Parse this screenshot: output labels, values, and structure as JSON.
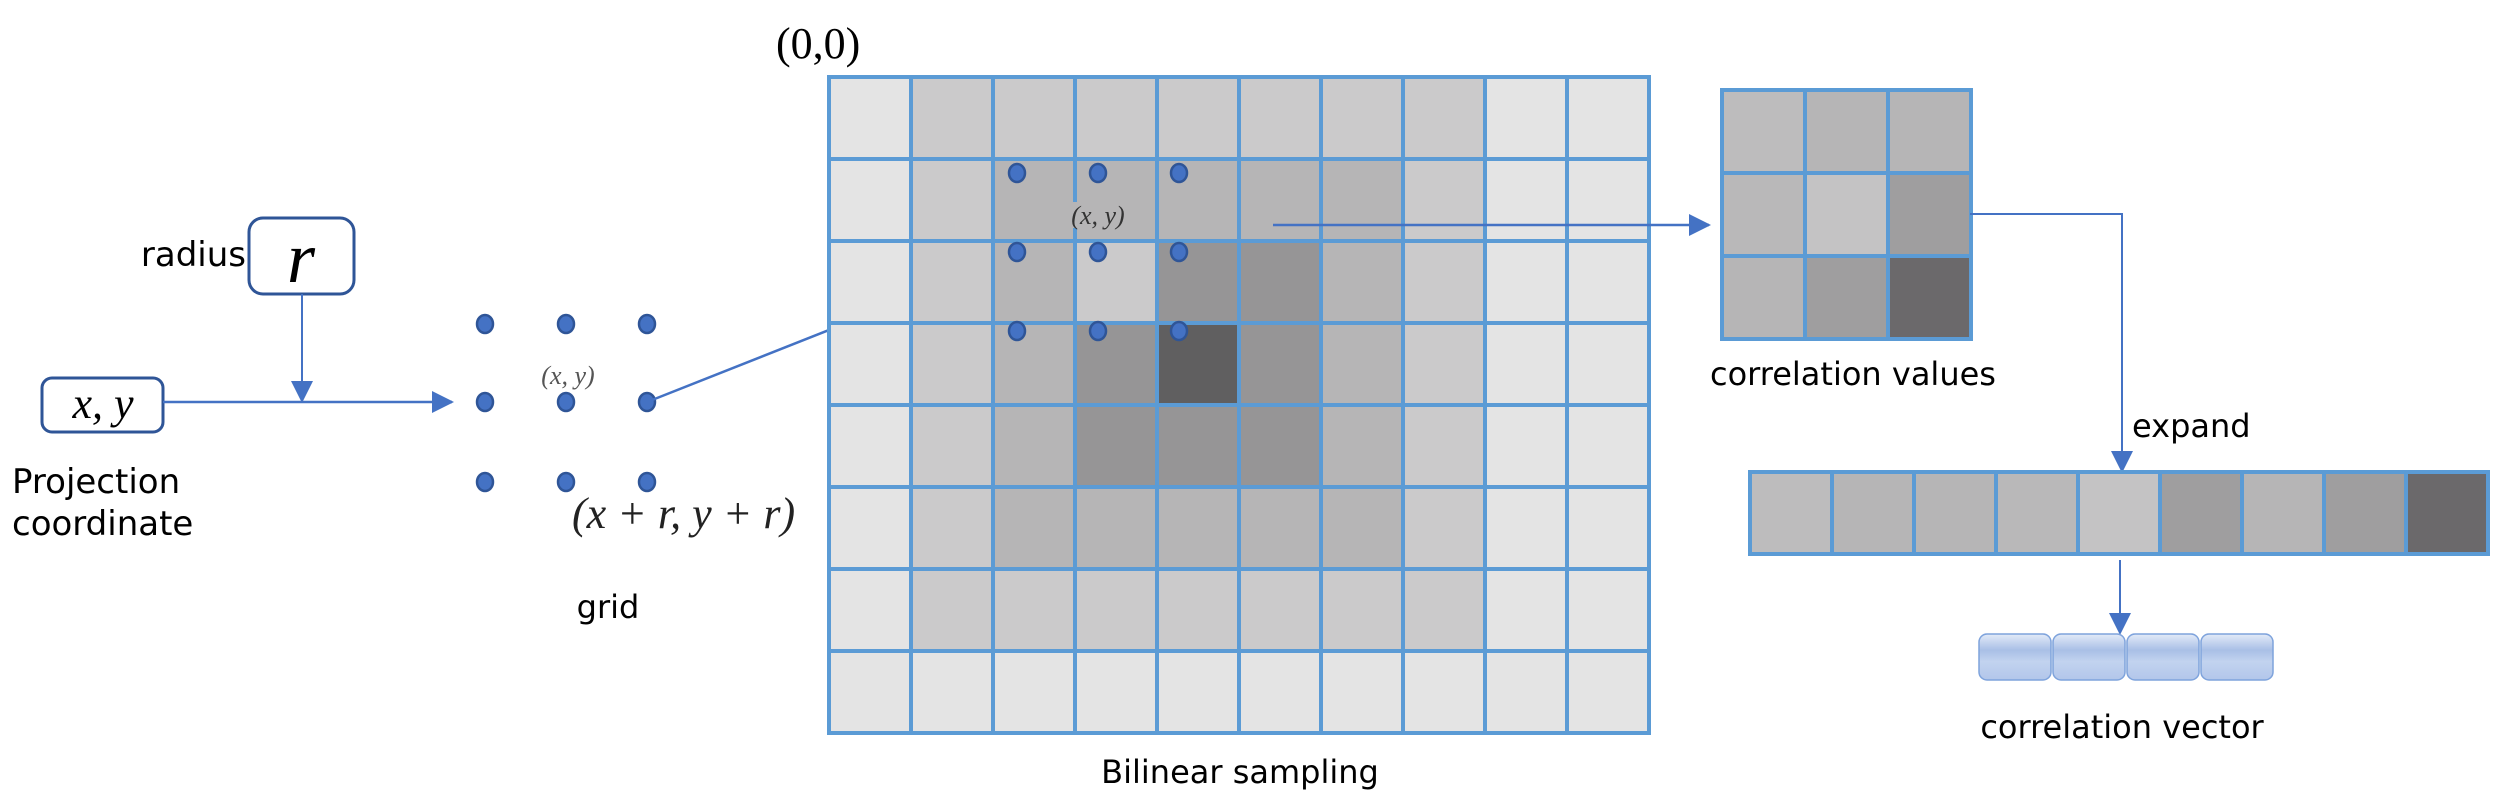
{
  "colors": {
    "grid_line": "#5b9bd5",
    "arrow": "#4472c4",
    "box_border": "#2f5597",
    "dot": "#4472c4",
    "dot_border": "#2f5597",
    "vector_fill": "#b8cbea",
    "vector_border": "#7ea3dc"
  },
  "inputs": {
    "radius_label": "radius",
    "radius_symbol": "r",
    "coord_symbol": "x, y",
    "projection_label_line1": "Projection",
    "projection_label_line2": "coordinate"
  },
  "grid_stage": {
    "center_label": "(x, y)",
    "corner_label": "(x + r, y + r)",
    "caption": "grid"
  },
  "sampling": {
    "origin_label": "(0,0)",
    "center_label": "(x, y)",
    "caption": "Bilinear sampling",
    "cells": [
      [
        "#e4e4e4",
        "#cbcacb",
        "#cbcacb",
        "#cbcacb",
        "#cbcacb",
        "#cbcacb",
        "#cbcacb",
        "#cbcacb",
        "#e4e4e4",
        "#e4e4e4"
      ],
      [
        "#e4e4e4",
        "#cbcacb",
        "#b6b5b6",
        "#b6b5b6",
        "#b6b5b6",
        "#b6b5b6",
        "#b6b5b6",
        "#cbcacb",
        "#e4e4e4",
        "#e4e4e4"
      ],
      [
        "#e4e4e4",
        "#cbcacb",
        "#b6b5b6",
        "#cbcacb",
        "#969596",
        "#969596",
        "#b6b5b6",
        "#cbcacb",
        "#e4e4e4",
        "#e4e4e4"
      ],
      [
        "#e4e4e4",
        "#cbcacb",
        "#b6b5b6",
        "#969596",
        "#605f60",
        "#969596",
        "#b6b5b6",
        "#cbcacb",
        "#e4e4e4",
        "#e4e4e4"
      ],
      [
        "#e4e4e4",
        "#cbcacb",
        "#b6b5b6",
        "#969596",
        "#969596",
        "#969596",
        "#b6b5b6",
        "#cbcacb",
        "#e4e4e4",
        "#e4e4e4"
      ],
      [
        "#e4e4e4",
        "#cbcacb",
        "#b6b5b6",
        "#b6b5b6",
        "#b6b5b6",
        "#b6b5b6",
        "#b6b5b6",
        "#cbcacb",
        "#e4e4e4",
        "#e4e4e4"
      ],
      [
        "#e4e4e4",
        "#cbcacb",
        "#cbcacb",
        "#cbcacb",
        "#cbcacb",
        "#cbcacb",
        "#cbcacb",
        "#cbcacb",
        "#e4e4e4",
        "#e4e4e4"
      ],
      [
        "#e4e4e4",
        "#e4e4e4",
        "#e4e4e4",
        "#e4e4e4",
        "#e4e4e4",
        "#e4e4e4",
        "#e4e4e4",
        "#e4e4e4",
        "#e4e4e4",
        "#e4e4e4"
      ]
    ]
  },
  "correlation_values": {
    "caption": "correlation values",
    "cells": [
      [
        "#bdbcbd",
        "#b6b5b6",
        "#b6b5b6"
      ],
      [
        "#b9b8b9",
        "#c4c3c4",
        "#9f9e9f"
      ],
      [
        "#b6b5b6",
        "#9f9e9f",
        "#6b696b"
      ]
    ]
  },
  "expand": {
    "label": "expand",
    "cells": [
      "#bdbcbd",
      "#b6b5b6",
      "#b6b5b6",
      "#b9b8b9",
      "#c4c3c4",
      "#9f9e9f",
      "#b6b5b6",
      "#9f9e9f",
      "#6b696b"
    ]
  },
  "correlation_vector": {
    "caption": "correlation vector",
    "segments": 4
  }
}
